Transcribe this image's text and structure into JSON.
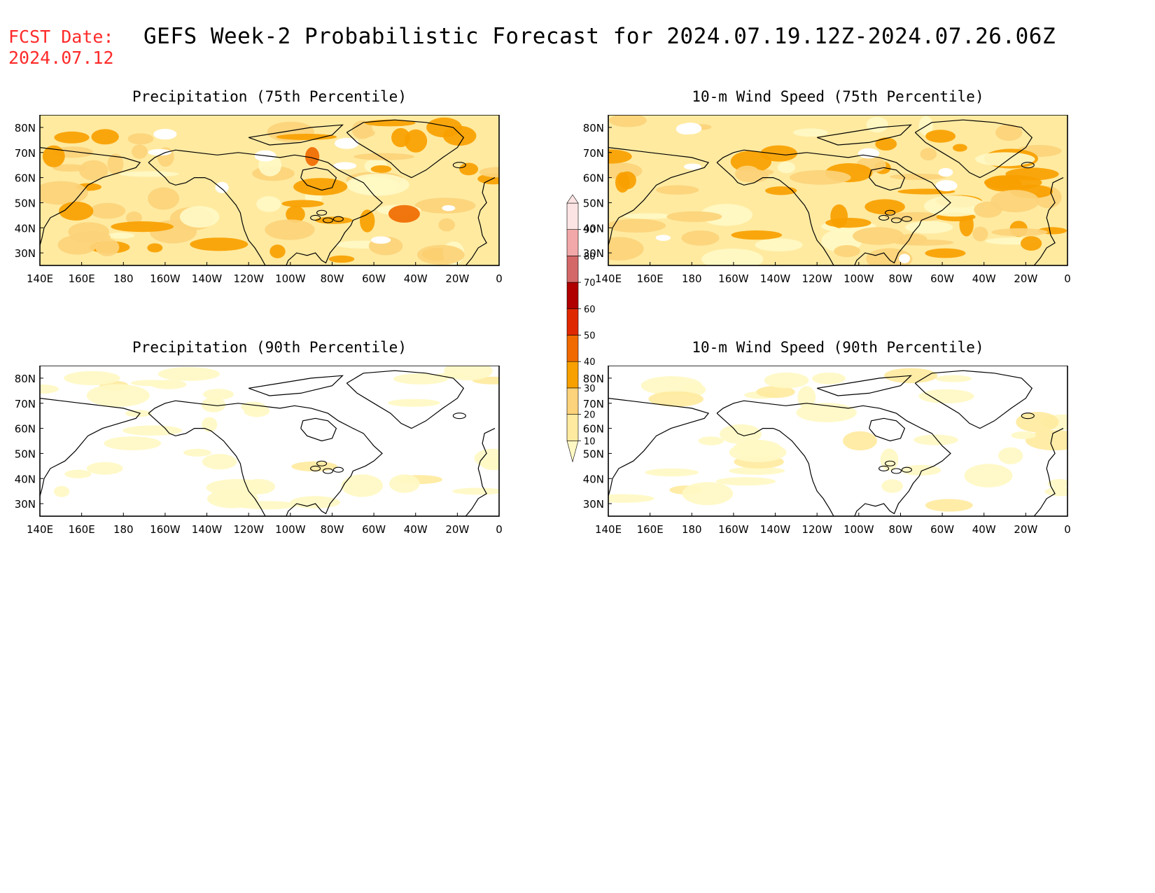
{
  "fcst_label": "FCST Date:",
  "fcst_date": "2024.07.12",
  "title": "GEFS Week-2 Probabilistic Forecast for 2024.07.19.12Z-2024.07.26.06Z",
  "panels": [
    {
      "id": "p75",
      "title": "Precipitation (75th Percentile)",
      "intensity": 0.75
    },
    {
      "id": "w75",
      "title": "10-m Wind Speed (75th Percentile)",
      "intensity": 0.75
    },
    {
      "id": "p90",
      "title": "Precipitation (90th Percentile)",
      "intensity": 0.25
    },
    {
      "id": "w90",
      "title": "10-m Wind Speed (90th Percentile)",
      "intensity": 0.25
    }
  ],
  "axes": {
    "lat_labels": [
      "80N",
      "70N",
      "60N",
      "50N",
      "40N",
      "30N"
    ],
    "lon_labels": [
      "140E",
      "160E",
      "180",
      "160W",
      "140W",
      "120W",
      "100W",
      "80W",
      "60W",
      "40W",
      "20W",
      "0"
    ]
  },
  "colorbar": {
    "levels": [
      "10",
      "20",
      "30",
      "40",
      "50",
      "60",
      "70",
      "80",
      "90"
    ],
    "colors": [
      "#fff8c4",
      "#ffeaa0",
      "#fcd27a",
      "#f8a000",
      "#f06a00",
      "#e02800",
      "#b00000",
      "#d46868",
      "#f2a8a8",
      "#fce4e4"
    ]
  }
}
